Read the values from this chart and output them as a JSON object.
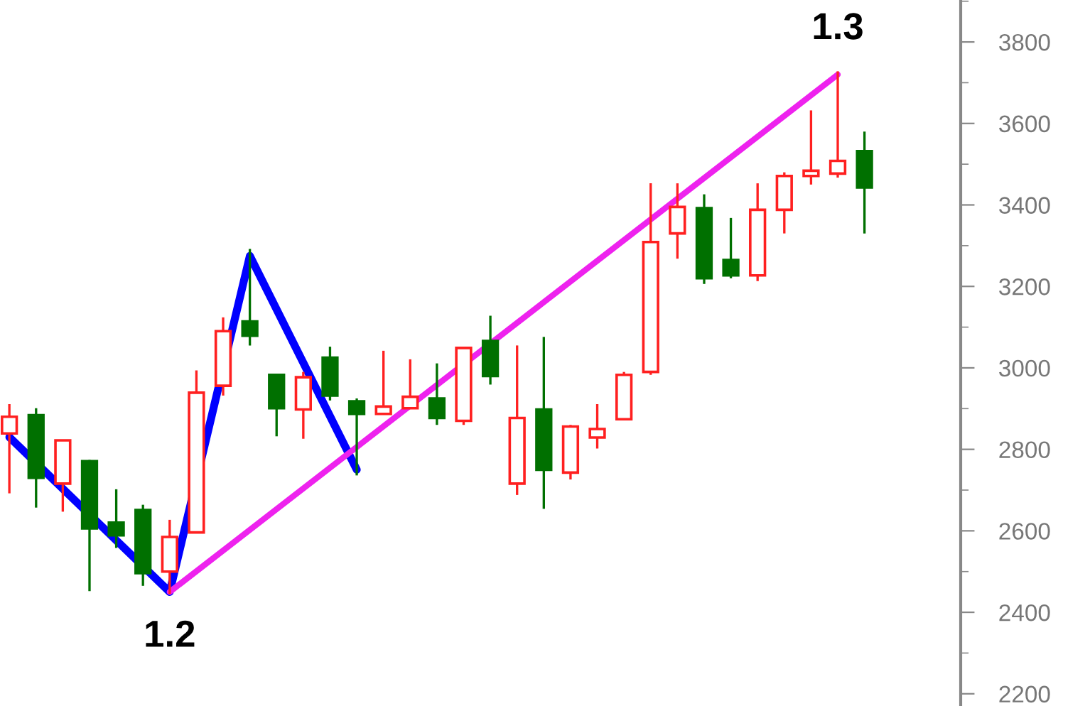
{
  "chart_data": {
    "type": "candlestick",
    "categories": [
      null,
      null,
      null,
      null,
      null,
      null,
      null,
      null,
      null,
      null,
      null,
      null,
      null,
      null,
      null,
      null,
      null,
      null,
      null,
      null,
      null,
      null,
      null,
      null,
      null,
      null,
      null,
      null,
      null,
      null,
      null,
      null,
      null
    ],
    "ohlc": [
      [
        2839,
        2911,
        2692,
        2880
      ],
      [
        2884,
        2901,
        2657,
        2730
      ],
      [
        2716,
        2822,
        2647,
        2822
      ],
      [
        2771,
        2774,
        2452,
        2606
      ],
      [
        2620,
        2702,
        2558,
        2589
      ],
      [
        2651,
        2664,
        2465,
        2496
      ],
      [
        2500,
        2627,
        2445,
        2585
      ],
      [
        2596,
        2994,
        2596,
        2939
      ],
      [
        2956,
        3124,
        2932,
        3090
      ],
      [
        3114,
        3292,
        3055,
        3079
      ],
      [
        2983,
        2983,
        2832,
        2901
      ],
      [
        2898,
        2990,
        2826,
        2977
      ],
      [
        3025,
        3052,
        2920,
        2932
      ],
      [
        2918,
        2925,
        2736,
        2887
      ],
      [
        2887,
        3042,
        2887,
        2905
      ],
      [
        2901,
        3021,
        2901,
        2929
      ],
      [
        2925,
        3011,
        2860,
        2877
      ],
      [
        2870,
        3049,
        2860,
        3049
      ],
      [
        3066,
        3128,
        2959,
        2980
      ],
      [
        2716,
        3055,
        2688,
        2877
      ],
      [
        2898,
        3076,
        2654,
        2750
      ],
      [
        2743,
        2860,
        2726,
        2856
      ],
      [
        2829,
        2911,
        2802,
        2850
      ],
      [
        2874,
        2990,
        2874,
        2983
      ],
      [
        2990,
        3453,
        2983,
        3309
      ],
      [
        3330,
        3453,
        3268,
        3395
      ],
      [
        3392,
        3426,
        3206,
        3220
      ],
      [
        3265,
        3368,
        3220,
        3227
      ],
      [
        3227,
        3453,
        3213,
        3388
      ],
      [
        3388,
        3480,
        3330,
        3471
      ],
      [
        3471,
        3632,
        3450,
        3484
      ],
      [
        3477,
        3728,
        3467,
        3508
      ],
      [
        3532,
        3580,
        3330,
        3443
      ]
    ],
    "colors": [
      "#ff2020",
      "#007000",
      "#ff2020",
      "#007000",
      "#007000",
      "#007000",
      "#ff2020",
      "#ff2020",
      "#ff2020",
      "#007000",
      "#007000",
      "#ff2020",
      "#007000",
      "#007000",
      "#ff2020",
      "#ff2020",
      "#007000",
      "#ff2020",
      "#007000",
      "#ff2020",
      "#007000",
      "#ff2020",
      "#ff2020",
      "#ff2020",
      "#ff2020",
      "#ff2020",
      "#007000",
      "#007000",
      "#ff2020",
      "#ff2020",
      "#ff2020",
      "#ff2020",
      "#007000"
    ],
    "series": [
      {
        "type": "line",
        "color": "#0000ff",
        "values": [
          2830,
          null,
          null,
          null,
          null,
          null,
          2450,
          null,
          null,
          3275,
          null,
          null,
          null,
          2750,
          null,
          null,
          null,
          null,
          null,
          null,
          null,
          null,
          null,
          null,
          null,
          null,
          null,
          null,
          null,
          null,
          null,
          null,
          null
        ]
      },
      {
        "type": "line",
        "color": "#ee22ee",
        "values": [
          null,
          null,
          null,
          null,
          null,
          null,
          2450,
          null,
          null,
          null,
          null,
          null,
          null,
          null,
          null,
          null,
          null,
          null,
          null,
          null,
          null,
          null,
          null,
          null,
          null,
          null,
          null,
          null,
          null,
          null,
          null,
          3720,
          null
        ]
      }
    ],
    "annotations": [
      {
        "text": "1.2",
        "y": 2450
      },
      {
        "text": "1.3",
        "y": 3720
      }
    ],
    "ylim": [
      2170,
      3903
    ],
    "yticks": [
      2200,
      2400,
      2600,
      2800,
      3000,
      3200,
      3400,
      3600,
      3800
    ],
    "grid": false
  }
}
